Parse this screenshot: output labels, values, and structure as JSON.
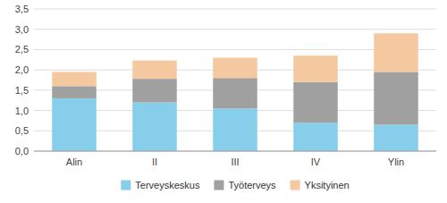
{
  "chart_data": {
    "type": "bar",
    "stacked": true,
    "categories": [
      "Alin",
      "II",
      "III",
      "IV",
      "Ylin"
    ],
    "series": [
      {
        "name": "Terveyskeskus",
        "color": "#87CEEB",
        "values": [
          1.3,
          1.2,
          1.05,
          0.7,
          0.65
        ]
      },
      {
        "name": "Työterveys",
        "color": "#A0A0A0",
        "values": [
          0.3,
          0.58,
          0.75,
          1.0,
          1.3
        ]
      },
      {
        "name": "Yksityinen",
        "color": "#F5C9A0",
        "values": [
          0.35,
          0.45,
          0.5,
          0.65,
          0.95
        ]
      }
    ],
    "ylim": [
      0,
      3.5
    ],
    "yticks": [
      {
        "value": 0.0,
        "label": "0,0"
      },
      {
        "value": 0.5,
        "label": "0,5"
      },
      {
        "value": 1.0,
        "label": "1,0"
      },
      {
        "value": 1.5,
        "label": "1,5"
      },
      {
        "value": 2.0,
        "label": "2,0"
      },
      {
        "value": 2.5,
        "label": "2,5"
      },
      {
        "value": 3.0,
        "label": "3,0"
      },
      {
        "value": 3.5,
        "label": "3,5"
      }
    ],
    "grid": true,
    "legend": "bottom"
  }
}
